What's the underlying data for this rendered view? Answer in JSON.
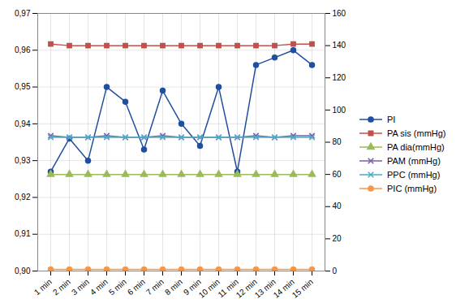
{
  "chart_data": {
    "type": "line",
    "categories": [
      "1 min",
      "2 min",
      "3 min",
      "4 min",
      "5 min",
      "6 min",
      "7 min",
      "8 min",
      "9 min",
      "10 min",
      "11 min",
      "12 min",
      "13 min",
      "14 min",
      "15 min"
    ],
    "series": [
      {
        "name": "PI",
        "color": "#214fa0",
        "marker": "circle",
        "values": [
          0.927,
          0.936,
          0.93,
          0.95,
          0.946,
          0.933,
          0.949,
          0.94,
          0.934,
          0.95,
          0.927,
          0.956,
          0.958,
          0.96,
          0.956
        ]
      },
      {
        "name": "PA sis (mmHg)",
        "color": "#c0504d",
        "marker": "square",
        "axis": "y2",
        "values": [
          141,
          140,
          140,
          140,
          140,
          140,
          140,
          140,
          140,
          140,
          140,
          140,
          140,
          141,
          141
        ]
      },
      {
        "name": "PA dia(mmHg)",
        "color": "#9bbb59",
        "marker": "triangle",
        "axis": "y2",
        "values": [
          60,
          60,
          60,
          60,
          60,
          60,
          60,
          60,
          60,
          60,
          60,
          60,
          60,
          60,
          60
        ]
      },
      {
        "name": "PAM (mmHg)",
        "color": "#7c5ca5",
        "marker": "x",
        "axis": "y2",
        "values": [
          84,
          83,
          83,
          84,
          83,
          83,
          84,
          83,
          83,
          83,
          83,
          84,
          83,
          84,
          84
        ]
      },
      {
        "name": "PPC (mmHg)",
        "color": "#4bacc6",
        "marker": "x",
        "axis": "y2",
        "values": [
          83,
          83,
          83,
          83,
          83,
          83,
          83,
          83,
          83,
          83,
          83,
          83,
          83,
          83,
          83
        ]
      },
      {
        "name": "PIC (mmHg)",
        "color": "#f79646",
        "marker": "circle",
        "axis": "y2",
        "values": [
          1,
          1,
          1,
          1,
          1,
          1,
          1,
          1,
          1,
          1,
          1,
          1,
          1,
          1,
          1
        ]
      }
    ],
    "ylim": [
      0.9,
      0.97
    ],
    "yticks": [
      {
        "value": 0.9,
        "label": "0,90"
      },
      {
        "value": 0.91,
        "label": "0,91"
      },
      {
        "value": 0.92,
        "label": "0,92"
      },
      {
        "value": 0.93,
        "label": "0,93"
      },
      {
        "value": 0.94,
        "label": "0,94"
      },
      {
        "value": 0.95,
        "label": "0,95"
      },
      {
        "value": 0.96,
        "label": "0,96"
      },
      {
        "value": 0.97,
        "label": "0,97"
      }
    ],
    "y2lim": [
      0,
      160
    ],
    "y2ticks": [
      0,
      20,
      40,
      60,
      80,
      100,
      120,
      140,
      160
    ],
    "grid": true,
    "legend": "right"
  }
}
